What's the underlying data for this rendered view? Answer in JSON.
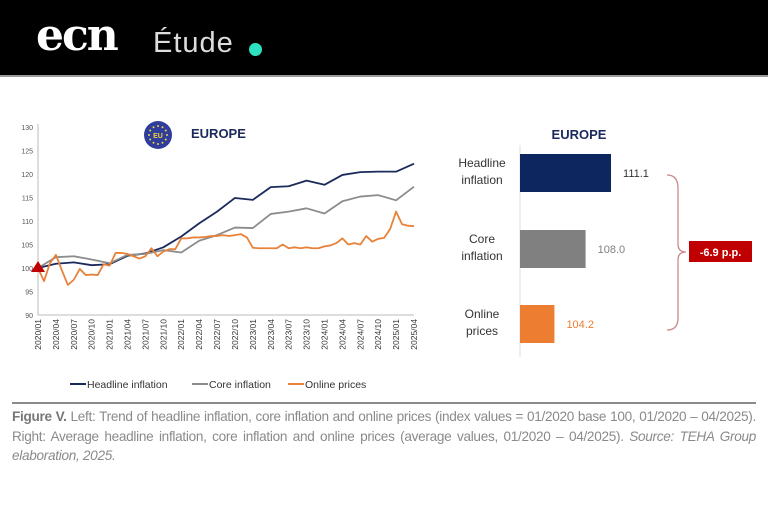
{
  "header": {
    "logo": "ecn",
    "section": "Étude",
    "accent_color": "#2de0c0"
  },
  "chart_data": [
    {
      "type": "line",
      "title": "EUROPE",
      "badge_icon": "eu-flag-icon",
      "ylim": [
        90,
        130
      ],
      "yticks": [
        90,
        95,
        100,
        105,
        110,
        115,
        120,
        125,
        130
      ],
      "xticks": [
        "2020/01",
        "2020/04",
        "2020/07",
        "2020/10",
        "2021/01",
        "2021/04",
        "2021/07",
        "2021/10",
        "2022/01",
        "2022/04",
        "2022/07",
        "2022/10",
        "2023/01",
        "2023/04",
        "2023/07",
        "2023/10",
        "2024/01",
        "2024/04",
        "2024/07",
        "2024/10",
        "2025/01",
        "2025/04"
      ],
      "grid": false,
      "legend_position": "bottom",
      "base_marker": {
        "x": "2020/01",
        "y": 100,
        "shape": "triangle",
        "color": "#c00000"
      },
      "series": [
        {
          "name": "Headline inflation",
          "color": "#1b2a5c",
          "x": [
            "2020/01",
            "2020/04",
            "2020/07",
            "2020/10",
            "2021/01",
            "2021/04",
            "2021/07",
            "2021/10",
            "2022/01",
            "2022/04",
            "2022/07",
            "2022/10",
            "2023/01",
            "2023/04",
            "2023/07",
            "2023/10",
            "2024/01",
            "2024/04",
            "2024/07",
            "2024/10",
            "2025/01",
            "2025/04"
          ],
          "values": [
            100,
            100.9,
            101.2,
            100.6,
            100.8,
            102.6,
            103.1,
            104.4,
            106.7,
            109.5,
            112,
            114.9,
            114.5,
            117.2,
            117.4,
            118.6,
            117.7,
            119.8,
            120.4,
            120.5,
            120.5,
            122.2
          ]
        },
        {
          "name": "Core inflation",
          "color": "#8c8c8c",
          "x": [
            "2020/01",
            "2020/04",
            "2020/07",
            "2020/10",
            "2021/01",
            "2021/04",
            "2021/07",
            "2021/10",
            "2022/01",
            "2022/04",
            "2022/07",
            "2022/10",
            "2023/01",
            "2023/04",
            "2023/07",
            "2023/10",
            "2024/01",
            "2024/04",
            "2024/07",
            "2024/10",
            "2025/01",
            "2025/04"
          ],
          "values": [
            100,
            102.3,
            102.5,
            101.8,
            101,
            102.8,
            103,
            103.8,
            103.3,
            105.8,
            107,
            108.6,
            108.5,
            111.5,
            112,
            112.7,
            111.6,
            114.2,
            115.2,
            115.5,
            114.4,
            117.3
          ]
        },
        {
          "name": "Online prices",
          "color": "#e8823a",
          "x_start": "2020/01",
          "x_step": "monthly",
          "values": [
            100,
            97.2,
            101,
            102.8,
            99.5,
            96.4,
            97.5,
            99.8,
            98.5,
            98.6,
            98.5,
            100.8,
            100.5,
            103.2,
            103.2,
            103,
            102.5,
            102,
            102.5,
            104.2,
            102.5,
            103.5,
            104,
            104,
            106.3,
            106.3,
            106.5,
            106.5,
            106.6,
            106.8,
            106.8,
            107,
            106.8,
            107,
            107.2,
            106.5,
            104.3,
            104.2,
            104.2,
            104.2,
            104.2,
            105,
            104.2,
            104.4,
            104.2,
            104.4,
            104.2,
            104.2,
            104.6,
            104.8,
            105.3,
            106.3,
            105,
            105.3,
            105,
            106.8,
            105.6,
            106.2,
            106.4,
            108.3,
            112,
            109.3,
            109,
            108.9
          ]
        }
      ]
    },
    {
      "type": "bar",
      "orientation": "horizontal",
      "title": "EUROPE",
      "categories": [
        "Headline inflation",
        "Core inflation",
        "Online prices"
      ],
      "category_lines": [
        [
          "Headline",
          "inflation"
        ],
        [
          "Core",
          "inflation"
        ],
        [
          "Online",
          "prices"
        ]
      ],
      "values": [
        111.1,
        108.0,
        104.2
      ],
      "value_labels": [
        "111.1",
        "108.0",
        "104.2"
      ],
      "colors": [
        "#0d2660",
        "#808080",
        "#ed7d31"
      ],
      "axis_start": 100,
      "annotation": {
        "text": "-6.9 p.p.",
        "color": "#c00000",
        "brace_color": "#c9888a"
      }
    }
  ],
  "caption": {
    "label": "Figure V.",
    "text": " Left: Trend of headline inflation, core inflation and online prices (index values = 01/2020 base 100, 01/2020 – 04/2025). Right: Average headline inflation, core inflation and online prices (average values, 01/2020 – 04/2025). ",
    "source": "Source: TEHA Group elaboration, 2025."
  }
}
